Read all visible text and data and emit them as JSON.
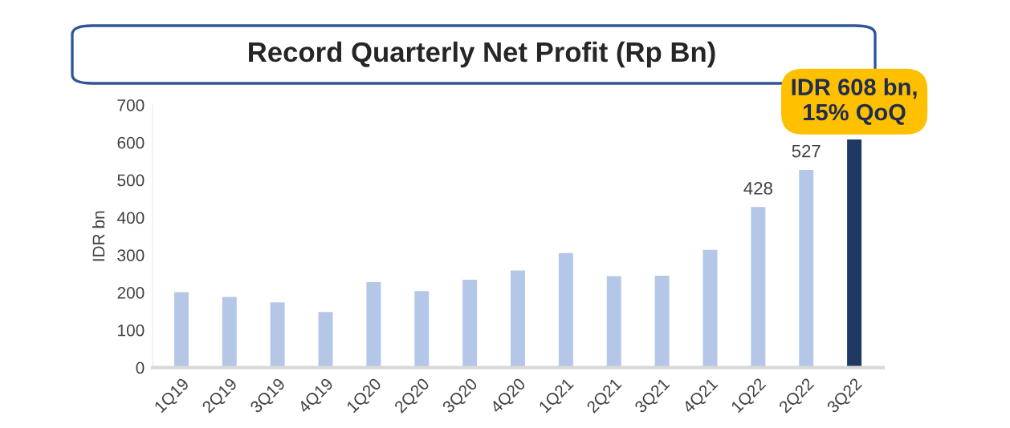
{
  "chart_data": {
    "type": "bar",
    "title": "Record Quarterly Net Profit (Rp Bn)",
    "ylabel": "IDR bn",
    "categories": [
      "1Q19",
      "2Q19",
      "3Q19",
      "4Q19",
      "1Q20",
      "2Q20",
      "3Q20",
      "4Q20",
      "1Q21",
      "2Q21",
      "3Q21",
      "4Q21",
      "1Q22",
      "2Q22",
      "3Q22"
    ],
    "values": [
      201,
      188,
      174,
      148,
      228,
      204,
      234,
      259,
      305,
      244,
      245,
      314,
      428,
      527,
      608
    ],
    "colors": [
      "#b4c7e7",
      "#b4c7e7",
      "#b4c7e7",
      "#b4c7e7",
      "#b4c7e7",
      "#b4c7e7",
      "#b4c7e7",
      "#b4c7e7",
      "#b4c7e7",
      "#b4c7e7",
      "#b4c7e7",
      "#b4c7e7",
      "#b4c7e7",
      "#b4c7e7",
      "#203864"
    ],
    "value_labels": [
      null,
      null,
      null,
      null,
      null,
      null,
      null,
      null,
      null,
      null,
      null,
      null,
      "428",
      "527",
      null
    ],
    "ylim": [
      0,
      700
    ],
    "yticks": [
      0,
      100,
      200,
      300,
      400,
      500,
      600,
      700
    ],
    "grid": false,
    "legend": false,
    "annotations": [
      {
        "text": "IDR 608 bn,\n15% QoQ",
        "x": "3Q22",
        "y": 608
      }
    ]
  }
}
